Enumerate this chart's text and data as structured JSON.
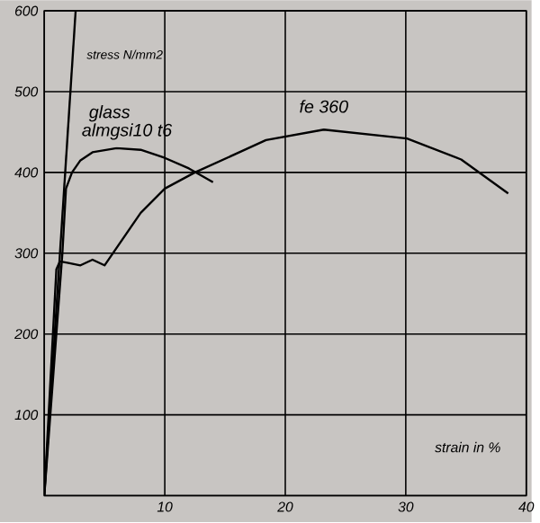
{
  "chart_data": {
    "type": "line",
    "xlabel": "strain in %",
    "ylabel": "stress N/mm2",
    "xlim": [
      0,
      40
    ],
    "ylim": [
      0,
      600
    ],
    "xticks": [
      {
        "value": 0,
        "label": null
      },
      10,
      20,
      30,
      40
    ],
    "yticks": [
      {
        "value": 0,
        "label": null
      },
      100,
      200,
      300,
      400,
      500,
      600
    ],
    "grid": true,
    "marker": "none",
    "line_style": "solid",
    "series": [
      {
        "name": "glass",
        "color": "#000000",
        "x": [
          0,
          2.6
        ],
        "values": [
          0,
          600
        ]
      },
      {
        "name": "almgsi10 t6",
        "color": "#000000",
        "x": [
          0,
          1.5,
          1.8,
          2.3,
          3,
          4,
          6,
          8,
          10,
          12,
          14
        ],
        "values": [
          0,
          300,
          380,
          400,
          415,
          425,
          430,
          428,
          418,
          405,
          388
        ]
      },
      {
        "name": "fe 360",
        "color": "#000000",
        "x": [
          0,
          1,
          1.3,
          2,
          3,
          4,
          5,
          8,
          10,
          12.5,
          18.4,
          23.2,
          30.1,
          34.6,
          38.5
        ],
        "values": [
          0,
          280,
          290,
          288,
          285,
          292,
          285,
          350,
          380,
          400,
          440,
          453,
          442,
          416,
          374
        ]
      }
    ]
  }
}
